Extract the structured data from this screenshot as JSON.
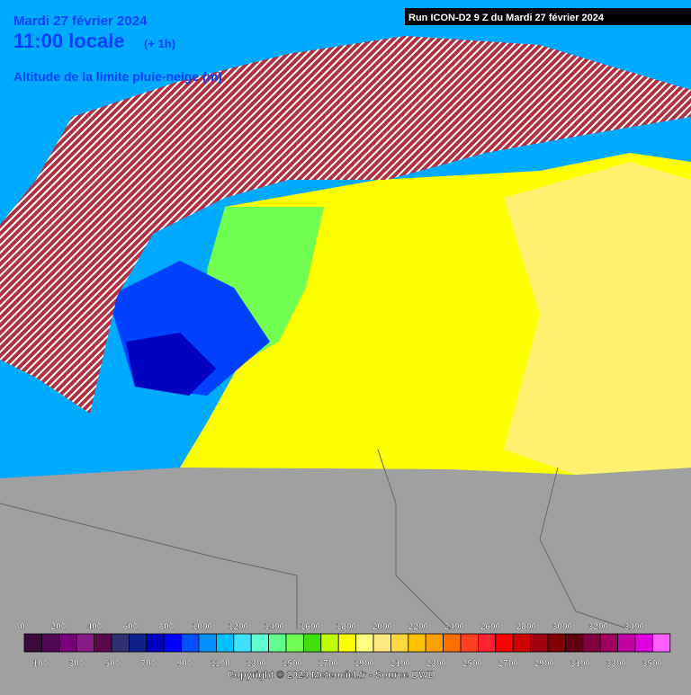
{
  "header": {
    "date": "Mardi 27 février 2024",
    "time": "11:00 locale",
    "offset": "(+ 1h)",
    "parameter": "Altitude de la limite pluie-neige (m)",
    "run": "Run ICON-D2 9 Z du Mardi 27 février 2024"
  },
  "legend": {
    "labels": [
      0,
      100,
      200,
      300,
      400,
      500,
      600,
      700,
      800,
      900,
      1000,
      1100,
      1200,
      1300,
      1400,
      1500,
      1600,
      1700,
      1800,
      1900,
      2000,
      2100,
      2200,
      2300,
      2400,
      2500,
      2600,
      2700,
      2800,
      2900,
      3000,
      3100,
      3200,
      3300,
      3400,
      3500
    ],
    "colors": [
      "#3a0a3a",
      "#520852",
      "#78007a",
      "#8a1a8a",
      "#5a0a4a",
      "#303070",
      "#10208a",
      "#0000c0",
      "#0000ff",
      "#0050ff",
      "#0090ff",
      "#00c0ff",
      "#40e0ff",
      "#60ffd0",
      "#60ff90",
      "#70ff50",
      "#40e010",
      "#c0ff00",
      "#ffff00",
      "#ffff80",
      "#ffe880",
      "#ffd840",
      "#ffc000",
      "#ffa000",
      "#ff7000",
      "#ff4020",
      "#ff2030",
      "#ff0000",
      "#d00000",
      "#a00010",
      "#800000",
      "#600010",
      "#800040",
      "#a00060",
      "#c000a0",
      "#e000e0",
      "#ff60ff"
    ]
  },
  "footer": {
    "copyright": "Copyright © 2024 Meteociel.fr - Source DWD"
  }
}
